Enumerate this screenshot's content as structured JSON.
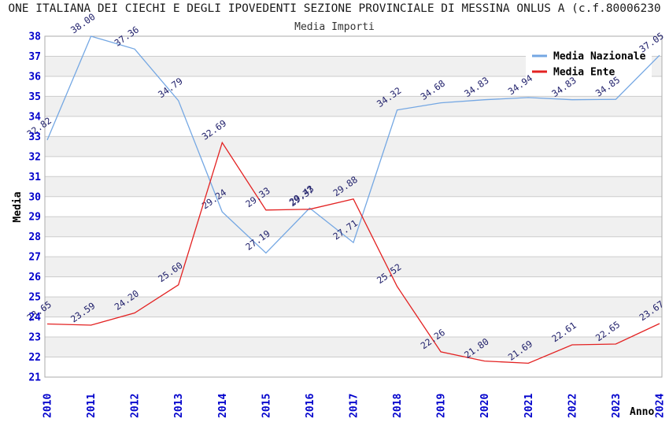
{
  "title": "ONE ITALIANA DEI CIECHI E DEGLI IPOVEDENTI SEZIONE PROVINCIALE DI MESSINA ONLUS A (c.f.80006230",
  "subtitle": "Media Importi",
  "chart_data": {
    "type": "line",
    "title": "Media Importi",
    "xlabel": "Anno",
    "ylabel": "Media",
    "x": [
      "2010",
      "2011",
      "2012",
      "2013",
      "2014",
      "2015",
      "2016",
      "2017",
      "2018",
      "2019",
      "2020",
      "2021",
      "2022",
      "2023",
      "2024"
    ],
    "series": [
      {
        "name": "Media Nazionale",
        "color": "#74a7e3",
        "values": [
          32.82,
          38.0,
          37.36,
          34.79,
          29.24,
          27.19,
          29.43,
          27.71,
          34.32,
          34.68,
          34.83,
          34.94,
          34.83,
          34.85,
          37.05
        ]
      },
      {
        "name": "Media Ente",
        "color": "#e32222",
        "values": [
          23.65,
          23.59,
          24.2,
          25.6,
          32.69,
          29.33,
          29.37,
          29.88,
          25.52,
          22.26,
          21.8,
          21.69,
          22.61,
          22.65,
          23.67
        ]
      }
    ],
    "ylim": [
      21,
      38
    ],
    "ytick_step": 1,
    "grid": true,
    "legend_position": "top-right",
    "colors": {
      "tick_label": "#0000cc",
      "data_label": "#20206b",
      "gridline": "#cccccc",
      "stripe": "#f0f0f0",
      "spine": "#ababab",
      "axis_title": "#000000",
      "legend_text": "#000000",
      "background": "#ffffff"
    }
  }
}
